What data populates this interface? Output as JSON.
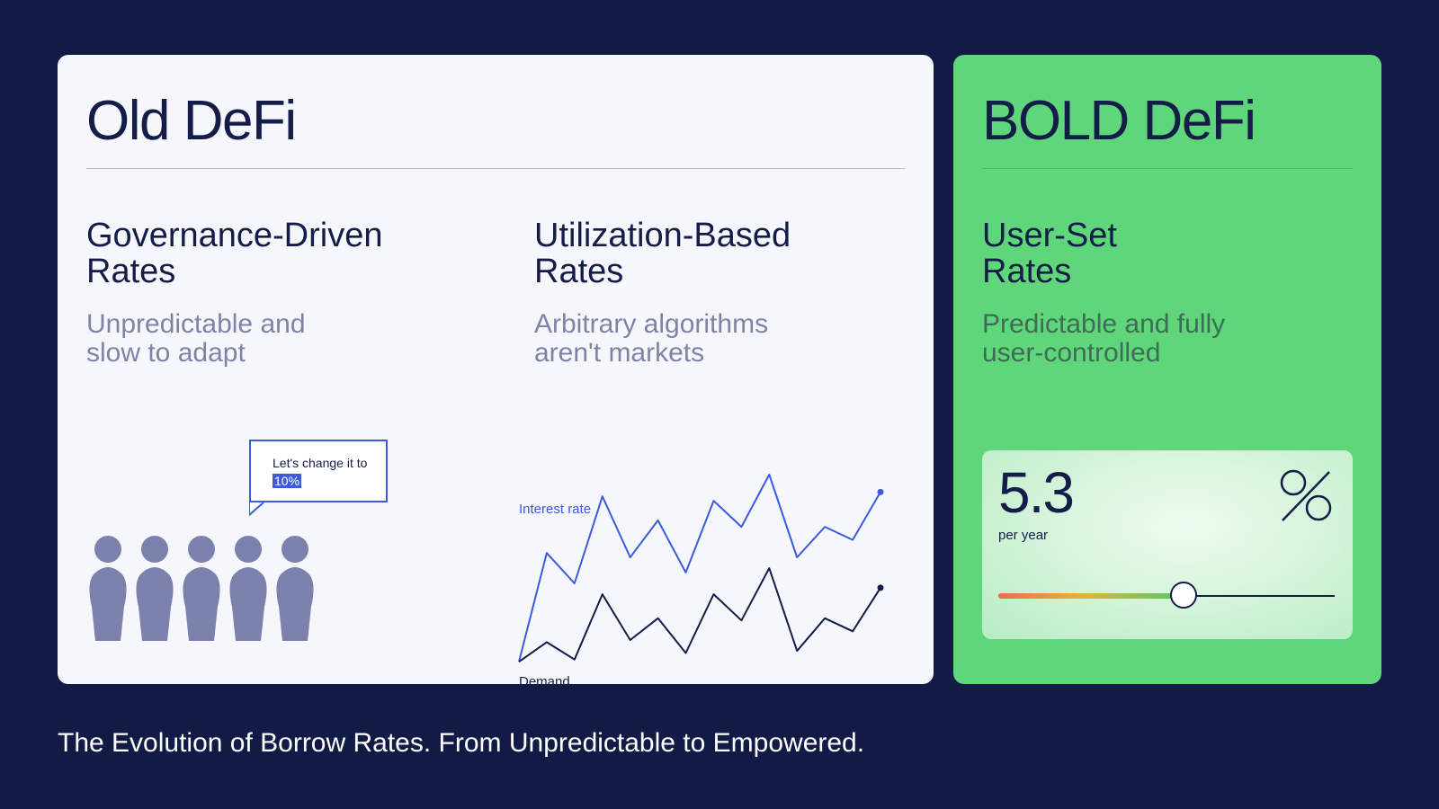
{
  "old_card": {
    "title": "Old DeFi",
    "governance": {
      "title": "Governance-Driven\nRates",
      "subtitle": "Unpredictable and\nslow to adapt",
      "bubble_prefix": "Let's change it to",
      "bubble_highlight": "10%",
      "people_icon": "person-group-icon"
    },
    "utilization": {
      "title": "Utilization-Based\nRates",
      "subtitle": "Arbitrary algorithms\naren't markets"
    }
  },
  "bold_card": {
    "title": "BOLD DeFi",
    "col_title": "User-Set\nRates",
    "col_subtitle": "Predictable and fully\nuser-controlled",
    "rate_value": "5.3",
    "rate_unit": "per year",
    "percent_icon": "percent-icon",
    "slider_fraction": 0.55
  },
  "chart_data": {
    "type": "line",
    "series": [
      {
        "name": "Interest rate",
        "values": [
          0.02,
          0.52,
          0.38,
          0.78,
          0.5,
          0.67,
          0.43,
          0.76,
          0.64,
          0.88,
          0.5,
          0.64,
          0.58,
          0.8
        ],
        "color": "#3d5bd9"
      },
      {
        "name": "Demand",
        "values": [
          0.02,
          0.11,
          0.03,
          0.33,
          0.12,
          0.22,
          0.06,
          0.33,
          0.21,
          0.45,
          0.07,
          0.22,
          0.16,
          0.36
        ],
        "color": "#141c48"
      }
    ],
    "xlabel": "",
    "ylabel": "",
    "grid": false,
    "legend": "inline"
  },
  "caption": "The Evolution of Borrow Rates. From Unpredictable to Empowered.",
  "colors": {
    "background": "#121b45",
    "bold_card": "#5fd67a",
    "accent_blue": "#3d5bd9"
  }
}
